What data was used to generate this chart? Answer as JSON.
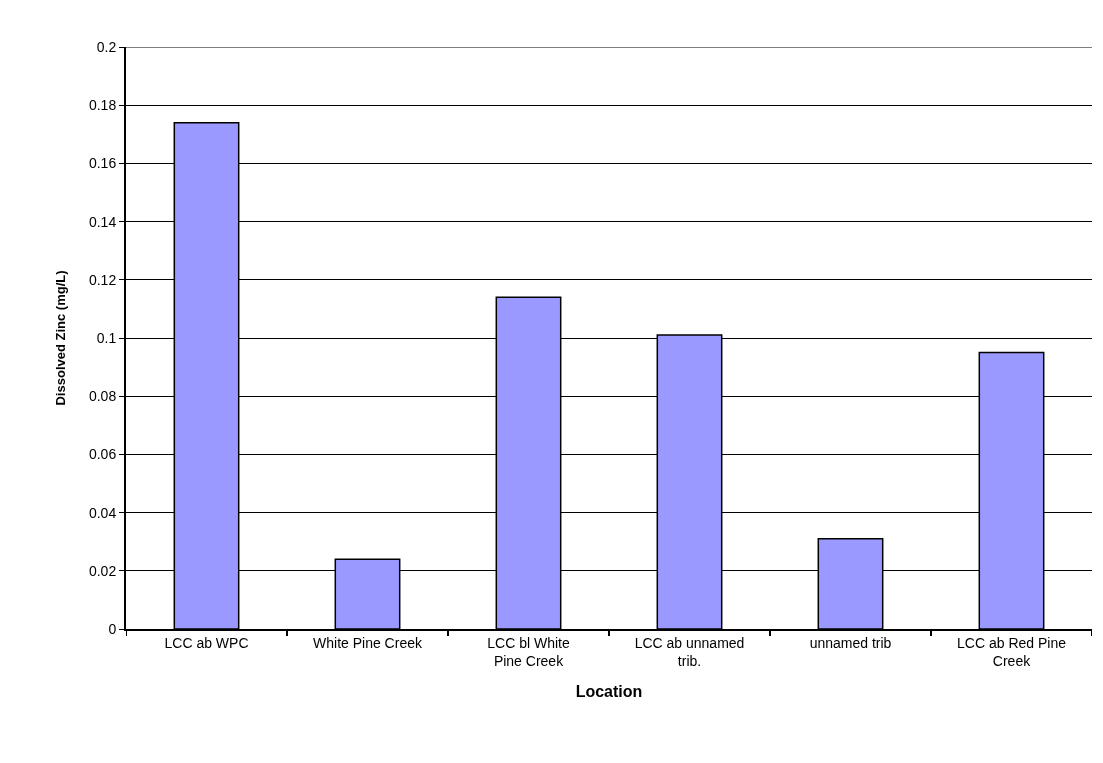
{
  "chart_data": {
    "type": "bar",
    "xlabel": "Location",
    "ylabel": "Dissolved Zinc (mg/L)",
    "categories": [
      "LCC ab WPC",
      "White Pine Creek",
      "LCC bl White Pine Creek",
      "LCC ab unnamed trib.",
      "unnamed trib",
      "LCC ab Red Pine Creek"
    ],
    "values": [
      0.174,
      0.024,
      0.114,
      0.101,
      0.031,
      0.095
    ],
    "color": "#9999ff",
    "ylim": [
      0,
      0.2
    ],
    "yticks": [
      0,
      0.02,
      0.04,
      0.06,
      0.08,
      0.1,
      0.12,
      0.14,
      0.16,
      0.18,
      0.2
    ],
    "grid": "y"
  }
}
